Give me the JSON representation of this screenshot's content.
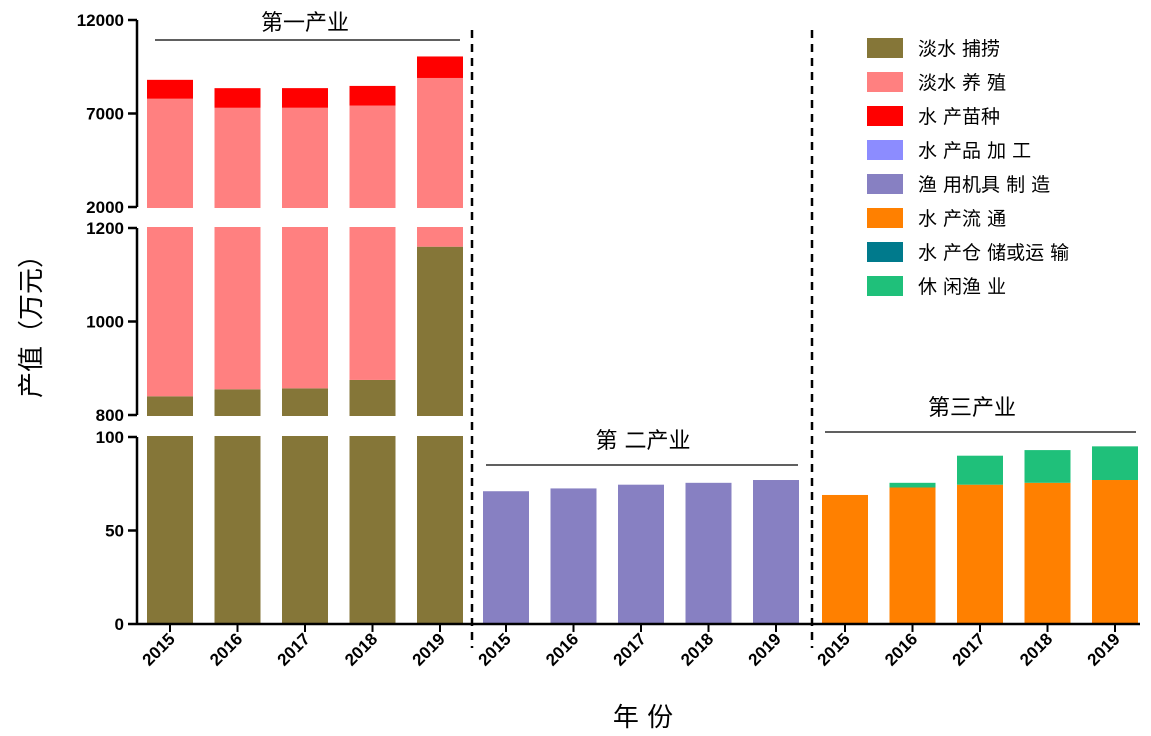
{
  "chart_data": {
    "type": "bar",
    "stacked": true,
    "broken_y_axis": true,
    "ylabel": "产值（万元）",
    "xlabel": "年 份",
    "y_segments": [
      {
        "range": [
          0,
          100
        ],
        "ticks": [
          0,
          50,
          100
        ]
      },
      {
        "range": [
          800,
          1200
        ],
        "ticks": [
          800,
          1000,
          1200
        ]
      },
      {
        "range": [
          2000,
          12000
        ],
        "ticks": [
          2000,
          7000,
          12000
        ]
      }
    ],
    "legend_position": "top-right",
    "series": [
      {
        "name": "淡水 捕捞",
        "color": "#857638"
      },
      {
        "name": "淡水 养 殖",
        "color": "#FF8080"
      },
      {
        "name": "水 产苗种",
        "color": "#FF0000"
      },
      {
        "name": "水 产品 加 工",
        "color": "#8C8CFF"
      },
      {
        "name": "渔 用机具 制 造",
        "color": "#8780C2"
      },
      {
        "name": "水 产流 通",
        "color": "#FF8000"
      },
      {
        "name": "水 产仓 储或运 输",
        "color": "#007A8C"
      },
      {
        "name": "休 闲渔 业",
        "color": "#1FC07A"
      }
    ],
    "groups": [
      {
        "title": "第一产业",
        "categories": [
          "2015",
          "2016",
          "2017",
          "2018",
          "2019"
        ],
        "stacks": [
          {
            "series": "淡水 捕捞",
            "values": [
              840,
              855,
              857,
              875,
              1160
            ]
          },
          {
            "series": "淡水 养 殖",
            "values": [
              6950,
              6450,
              6450,
              6550,
              7740
            ]
          },
          {
            "series": "水 产苗种",
            "values": [
              1010,
              1050,
              1050,
              1050,
              1150
            ]
          }
        ]
      },
      {
        "title": "第 二产业",
        "categories": [
          "2015",
          "2016",
          "2017",
          "2018",
          "2019"
        ],
        "stacks": [
          {
            "series": "渔 用机具 制 造",
            "values": [
              71,
              72.5,
              74.5,
              75.5,
              77
            ]
          }
        ]
      },
      {
        "title": "第三产业",
        "categories": [
          "2015",
          "2016",
          "2017",
          "2018",
          "2019"
        ],
        "stacks": [
          {
            "series": "水 产流 通",
            "values": [
              69,
              73,
              74.5,
              75.5,
              77
            ]
          },
          {
            "series": "休 闲渔 业",
            "values": [
              0,
              2.5,
              15.5,
              17.5,
              18
            ]
          }
        ]
      }
    ]
  }
}
